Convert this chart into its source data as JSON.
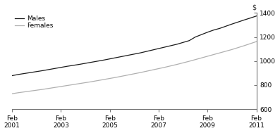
{
  "males_x": [
    2001.0,
    2001.25,
    2001.5,
    2001.75,
    2002.0,
    2002.25,
    2002.5,
    2002.75,
    2003.0,
    2003.25,
    2003.5,
    2003.75,
    2004.0,
    2004.25,
    2004.5,
    2004.75,
    2005.0,
    2005.25,
    2005.5,
    2005.75,
    2006.0,
    2006.25,
    2006.5,
    2006.75,
    2007.0,
    2007.25,
    2007.5,
    2007.75,
    2008.0,
    2008.25,
    2008.5,
    2008.75,
    2009.0,
    2009.25,
    2009.5,
    2009.75,
    2010.0,
    2010.25,
    2010.5,
    2010.75,
    2011.0
  ],
  "males_y": [
    878,
    888,
    896,
    904,
    912,
    920,
    929,
    938,
    947,
    956,
    964,
    972,
    981,
    990,
    999,
    1008,
    1018,
    1028,
    1038,
    1048,
    1058,
    1068,
    1080,
    1092,
    1104,
    1116,
    1128,
    1140,
    1155,
    1170,
    1200,
    1220,
    1240,
    1258,
    1272,
    1290,
    1308,
    1325,
    1342,
    1358,
    1375
  ],
  "females_x": [
    2001.0,
    2001.25,
    2001.5,
    2001.75,
    2002.0,
    2002.25,
    2002.5,
    2002.75,
    2003.0,
    2003.25,
    2003.5,
    2003.75,
    2004.0,
    2004.25,
    2004.5,
    2004.75,
    2005.0,
    2005.25,
    2005.5,
    2005.75,
    2006.0,
    2006.25,
    2006.5,
    2006.75,
    2007.0,
    2007.25,
    2007.5,
    2007.75,
    2008.0,
    2008.25,
    2008.5,
    2008.75,
    2009.0,
    2009.25,
    2009.5,
    2009.75,
    2010.0,
    2010.25,
    2010.5,
    2010.75,
    2011.0
  ],
  "females_y": [
    728,
    736,
    743,
    750,
    757,
    764,
    772,
    780,
    788,
    796,
    804,
    812,
    820,
    828,
    837,
    846,
    855,
    864,
    874,
    884,
    894,
    904,
    915,
    926,
    937,
    948,
    960,
    972,
    985,
    998,
    1012,
    1026,
    1040,
    1054,
    1068,
    1082,
    1096,
    1112,
    1128,
    1145,
    1162
  ],
  "males_color": "#1a1a1a",
  "females_color": "#b0b0b0",
  "ylim": [
    600,
    1400
  ],
  "xlim": [
    2001.0,
    2011.0
  ],
  "yticks": [
    600,
    800,
    1000,
    1200,
    1400
  ],
  "xticks": [
    2001,
    2003,
    2005,
    2007,
    2009,
    2011
  ],
  "dollar_sign": "$",
  "legend_males": "Males",
  "legend_females": "Females",
  "background_color": "#ffffff",
  "line_width": 0.9
}
